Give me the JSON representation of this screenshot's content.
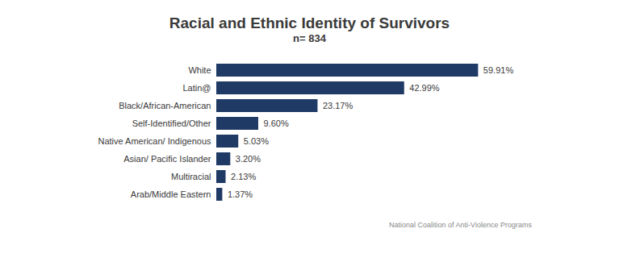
{
  "chart_data": {
    "type": "bar",
    "orientation": "horizontal",
    "title": "Racial and Ethnic Identity of Survivors",
    "subtitle": "n= 834",
    "caption": "National Coalition of Anti-Violence Programs",
    "categories": [
      "White",
      "Latin@",
      "Black/African-American",
      "Self-Identified/Other",
      "Native American/ Indigenous",
      "Asian/ Pacific Islander",
      "Multiracial",
      "Arab/Middle Eastern"
    ],
    "values": [
      59.91,
      42.99,
      23.17,
      9.6,
      5.03,
      3.2,
      2.13,
      1.37
    ],
    "value_labels": [
      "59.91%",
      "42.99%",
      "23.17%",
      "9.60%",
      "5.03%",
      "3.20%",
      "2.13%",
      "1.37%"
    ],
    "color": "#203a66",
    "xlim": [
      0,
      70
    ],
    "grid": false,
    "data_labels": true,
    "tick_labels": "y"
  }
}
